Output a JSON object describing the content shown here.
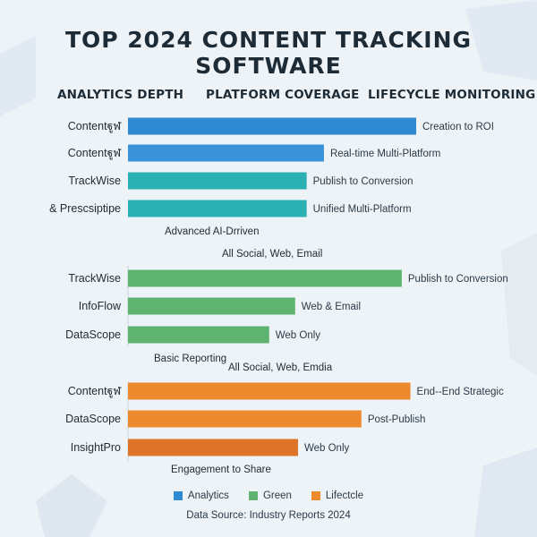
{
  "title": "TOP 2024 CONTENT TRACKING SOFTWARE",
  "column_headers": [
    "ANALYTICS DEPTH",
    "PLATFORM COVERAGE",
    "LIFECYCLE MONITORING"
  ],
  "colors": {
    "analytics": "#2f8ad4",
    "analytics_alt": "#2bb0b4",
    "green": "#5fb370",
    "lifecycle": "#ee8a2e",
    "lifecycle_dark": "#dd7428"
  },
  "chart_data": {
    "type": "bar",
    "orientation": "horizontal",
    "scale_note": "no axis printed; bar lengths are relative (0-100)",
    "groups": [
      {
        "series": "Analytics",
        "bars": [
          {
            "label": "Contentฐูฬ",
            "value": 100,
            "annotation": "Creation to ROI",
            "color": "#2f8ad4"
          },
          {
            "label": "Contentฐูฬ",
            "value": 68,
            "annotation": "Real-time Multi-Platform",
            "color": "#3a93d8"
          },
          {
            "label": "TrackWise",
            "value": 62,
            "annotation": "Publish to Conversion",
            "color": "#2bb0b4"
          },
          {
            "label": "& Prescsiptipe",
            "value": 62,
            "annotation": "Unified Multi-Platform",
            "color": "#2bb0b4"
          }
        ],
        "notes": [
          "Advanced AI-Drriven",
          "All Social, Web, Email"
        ]
      },
      {
        "series": "Green",
        "bars": [
          {
            "label": "TrackWise",
            "value": 95,
            "annotation": "Publish to Conversion",
            "color": "#5fb370"
          },
          {
            "label": "InfoFlow",
            "value": 58,
            "annotation": "Web & Email",
            "color": "#5fb370"
          },
          {
            "label": "DataScope",
            "value": 49,
            "annotation": "Web Only",
            "color": "#5fb370"
          }
        ],
        "notes": [
          "Basic Reporting",
          "All Social, Web, Emdia"
        ]
      },
      {
        "series": "Lifectcle",
        "bars": [
          {
            "label": "Contentฐูฬ",
            "value": 98,
            "annotation": "End--End Strategic",
            "color": "#ee8a2e"
          },
          {
            "label": "DataScope",
            "value": 81,
            "annotation": "Post-Publish",
            "color": "#ee8a2e"
          },
          {
            "label": "InsightPro",
            "value": 59,
            "annotation": "Web Only",
            "color": "#dd7428"
          }
        ],
        "notes": [
          "Engagement to Share"
        ]
      }
    ],
    "legend": [
      {
        "name": "Analytics",
        "color": "#2f8ad4"
      },
      {
        "name": "Green",
        "color": "#5fb370"
      },
      {
        "name": "Lifectcle",
        "color": "#ee8a2e"
      }
    ],
    "grid": false
  },
  "source": "Data Source: Industry Reports 2024"
}
